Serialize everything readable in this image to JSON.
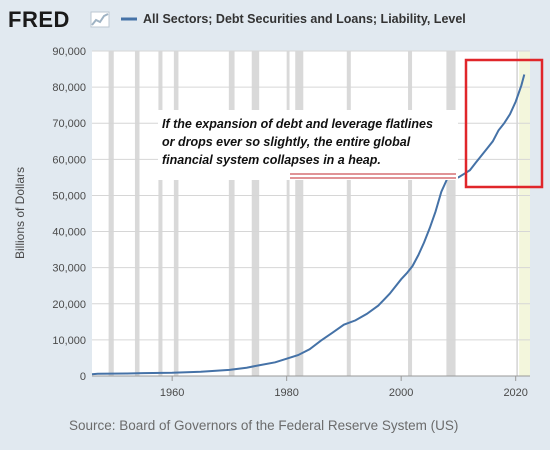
{
  "header": {
    "logo_text": "FRED",
    "legend_label": "All Sectors; Debt Securities and Loans; Liability, Level"
  },
  "source_text": "Source: Board of Governors of the Federal Reserve System (US)",
  "colors": {
    "line": "#4572a7",
    "recession": "#d9d9d9",
    "highlight_box": "#e0262a",
    "annotation_line": "#c0272d",
    "latest_band": "#f3f6dc"
  },
  "annotation": {
    "lines": [
      "If the expansion of debt and leverage flatlines",
      "or drops ever so slightly, the entire global",
      "financial system collapses in a heap."
    ]
  },
  "chart_data": {
    "type": "line",
    "title": "",
    "xlabel": "",
    "ylabel": "Billions of Dollars",
    "xlim": [
      1946,
      2022.5
    ],
    "ylim": [
      0,
      90000
    ],
    "x_ticks": [
      1960,
      1980,
      2000,
      2020
    ],
    "y_ticks": [
      0,
      10000,
      20000,
      30000,
      40000,
      50000,
      60000,
      70000,
      80000,
      90000
    ],
    "y_tick_labels": [
      "0",
      "10,000",
      "20,000",
      "30,000",
      "40,000",
      "50,000",
      "60,000",
      "70,000",
      "80,000",
      "90,000"
    ],
    "grid": true,
    "legend": "top",
    "recessions": [
      [
        1948.9,
        1949.8
      ],
      [
        1953.5,
        1954.3
      ],
      [
        1957.6,
        1958.3
      ],
      [
        1960.3,
        1961.1
      ],
      [
        1969.9,
        1970.9
      ],
      [
        1973.9,
        1975.2
      ],
      [
        1980.0,
        1980.5
      ],
      [
        1981.5,
        1982.9
      ],
      [
        1990.5,
        1991.2
      ],
      [
        2001.2,
        2001.9
      ],
      [
        2007.9,
        2009.5
      ],
      [
        2020.1,
        2020.4
      ]
    ],
    "series": [
      {
        "name": "All Sectors; Debt Securities and Loans; Liability, Level",
        "x": [
          1946,
          1947,
          1952,
          1955,
          1960,
          1965,
          1970,
          1973,
          1975,
          1978,
          1980,
          1982,
          1984,
          1986,
          1988,
          1990,
          1992,
          1994,
          1996,
          1998,
          2000,
          2001,
          2002,
          2003,
          2004,
          2005,
          2006,
          2007,
          2008,
          2009,
          2010,
          2011,
          2012,
          2013,
          2014,
          2015,
          2016,
          2017,
          2018,
          2019,
          2020,
          2021,
          2021.5
        ],
        "values": [
          500,
          600,
          700,
          800,
          900,
          1200,
          1700,
          2300,
          2900,
          3800,
          4800,
          5800,
          7400,
          9800,
          12000,
          14200,
          15400,
          17200,
          19500,
          22800,
          26800,
          28500,
          30500,
          33500,
          37000,
          41000,
          45500,
          51000,
          54500,
          54800,
          55000,
          56000,
          57000,
          59000,
          61000,
          63000,
          65000,
          68000,
          70000,
          72500,
          76000,
          80500,
          83500
        ]
      }
    ]
  }
}
